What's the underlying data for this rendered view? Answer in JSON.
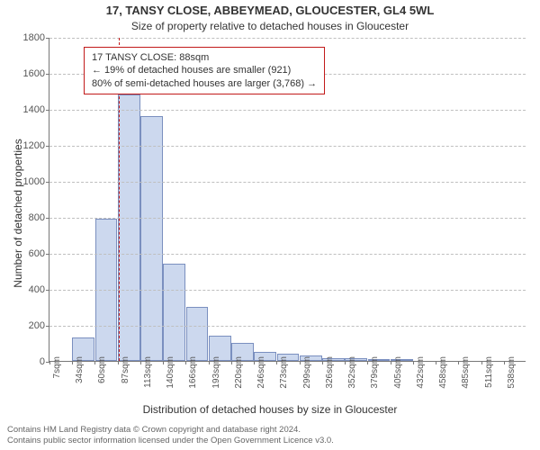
{
  "chart": {
    "type": "histogram",
    "title": "17, TANSY CLOSE, ABBEYMEAD, GLOUCESTER, GL4 5WL",
    "subtitle": "Size of property relative to detached houses in Gloucester",
    "ylabel": "Number of detached properties",
    "xlabel": "Distribution of detached houses by size in Gloucester",
    "background_color": "#ffffff",
    "bar_fill": "#ccd8ee",
    "bar_border": "#7a8fbf",
    "grid_color": "#bfbfbf",
    "axis_color": "#777777",
    "marker_color": "#c21a1a",
    "ylim": [
      0,
      1800
    ],
    "ytick_step": 200,
    "yticks": [
      0,
      200,
      400,
      600,
      800,
      1000,
      1200,
      1400,
      1600,
      1800
    ],
    "xticks": [
      "7sqm",
      "34sqm",
      "60sqm",
      "87sqm",
      "113sqm",
      "140sqm",
      "166sqm",
      "193sqm",
      "220sqm",
      "246sqm",
      "273sqm",
      "299sqm",
      "326sqm",
      "352sqm",
      "379sqm",
      "405sqm",
      "432sqm",
      "458sqm",
      "485sqm",
      "511sqm",
      "538sqm"
    ],
    "values": [
      0,
      130,
      790,
      1480,
      1360,
      540,
      300,
      140,
      100,
      50,
      40,
      30,
      15,
      15,
      10,
      6,
      0,
      0,
      0,
      0,
      0
    ],
    "marker_x_value": 88,
    "x_range": [
      7,
      565
    ],
    "annot": {
      "line1": "17 TANSY CLOSE: 88sqm",
      "line2": "← 19% of detached houses are smaller (921)",
      "line3": "80% of semi-detached houses are larger (3,768) →"
    },
    "title_fontsize": 13,
    "subtitle_fontsize": 12,
    "label_fontsize": 12,
    "tick_fontsize": 11,
    "annot_fontsize": 11,
    "footer_fontsize": 9.5
  },
  "footer": {
    "line1": "Contains HM Land Registry data © Crown copyright and database right 2024.",
    "line2": "Contains public sector information licensed under the Open Government Licence v3.0."
  }
}
